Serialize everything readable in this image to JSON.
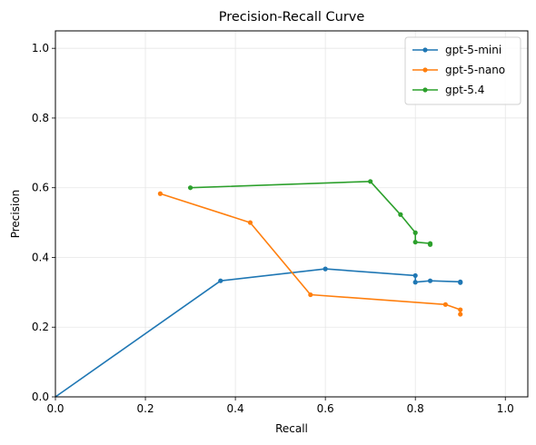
{
  "chart_data": {
    "type": "line",
    "title": "Precision-Recall Curve",
    "xlabel": "Recall",
    "ylabel": "Precision",
    "xlim": [
      0.0,
      1.05
    ],
    "ylim": [
      0.0,
      1.05
    ],
    "xticks": [
      "0.0",
      "0.2",
      "0.4",
      "0.6",
      "0.8",
      "1.0"
    ],
    "yticks": [
      "0.0",
      "0.2",
      "0.4",
      "0.6",
      "0.8",
      "1.0"
    ],
    "grid": true,
    "legend_position": "top-right",
    "series": [
      {
        "name": "gpt-5-mini",
        "color": "#1f77b4",
        "markers": [
          false,
          true,
          true,
          true,
          true,
          true,
          true,
          true
        ],
        "x": [
          0.0,
          0.367,
          0.6,
          0.8,
          0.8,
          0.833,
          0.9,
          0.9
        ],
        "y": [
          0.0,
          0.333,
          0.367,
          0.348,
          0.329,
          0.333,
          0.33,
          0.328
        ]
      },
      {
        "name": "gpt-5-nano",
        "color": "#ff7f0e",
        "markers": [
          true,
          true,
          true,
          true,
          true,
          true
        ],
        "x": [
          0.233,
          0.433,
          0.567,
          0.867,
          0.9,
          0.9
        ],
        "y": [
          0.583,
          0.5,
          0.293,
          0.265,
          0.25,
          0.237
        ]
      },
      {
        "name": "gpt-5.4",
        "color": "#2ca02c",
        "markers": [
          true,
          true,
          true,
          true,
          true,
          true,
          true
        ],
        "x": [
          0.3,
          0.7,
          0.767,
          0.8,
          0.8,
          0.833,
          0.833
        ],
        "y": [
          0.6,
          0.618,
          0.523,
          0.471,
          0.444,
          0.44,
          0.437
        ]
      }
    ]
  }
}
